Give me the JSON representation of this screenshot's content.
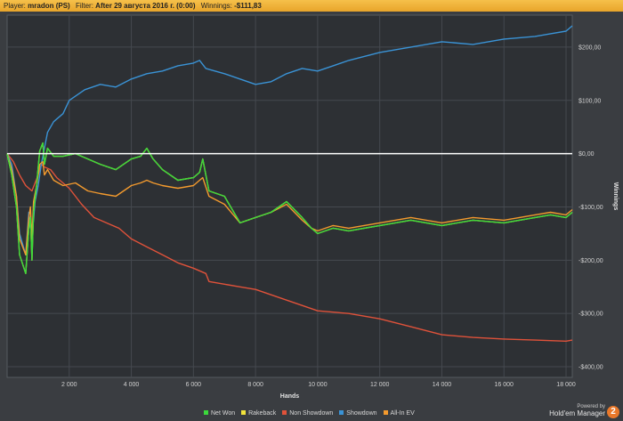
{
  "header": {
    "player_label": "Player:",
    "player_value": "mradon (PS)",
    "filter_label": "Filter:",
    "filter_value": "After 29 августа 2016 г. (0:00)",
    "winnings_label": "Winnings:",
    "winnings_value": "-$111,83"
  },
  "brand": {
    "powered_by": "Powered by",
    "name": "Hold'em Manager",
    "logo_text": "2"
  },
  "chart_data": {
    "type": "line",
    "xlabel": "Hands",
    "ylabel": "Winnings",
    "xlim": [
      0,
      18200
    ],
    "ylim": [
      -420,
      260
    ],
    "x_ticks": [
      2000,
      4000,
      6000,
      8000,
      10000,
      12000,
      14000,
      16000,
      18000
    ],
    "x_tick_labels": [
      "2 000",
      "4 000",
      "6 000",
      "8 000",
      "10 000",
      "12 000",
      "14 000",
      "16 000",
      "18 000"
    ],
    "y_ticks": [
      200,
      100,
      0,
      -100,
      -200,
      -300,
      -400
    ],
    "y_tick_labels": [
      "$200,00",
      "$100,00",
      "$0,00",
      "-$100,00",
      "-$200,00",
      "-$300,00",
      "-$400,00"
    ],
    "grid": true,
    "legend_position": "bottom",
    "series": [
      {
        "name": "Net Won",
        "color": "#3bd93b",
        "x": [
          0,
          150,
          300,
          400,
          600,
          700,
          750,
          800,
          850,
          950,
          1050,
          1150,
          1200,
          1300,
          1500,
          1800,
          2200,
          2600,
          3000,
          3500,
          4000,
          4300,
          4500,
          4700,
          5000,
          5500,
          6000,
          6200,
          6300,
          6500,
          7000,
          7500,
          8000,
          8500,
          9000,
          9500,
          9800,
          10000,
          10500,
          11000,
          12000,
          13000,
          14000,
          15000,
          16000,
          17000,
          17500,
          18000,
          18200
        ],
        "y": [
          0,
          -40,
          -100,
          -190,
          -225,
          -140,
          -120,
          -200,
          -110,
          -60,
          5,
          20,
          -20,
          10,
          -5,
          -5,
          0,
          -10,
          -20,
          -30,
          -10,
          -5,
          10,
          -10,
          -30,
          -50,
          -45,
          -35,
          -10,
          -70,
          -80,
          -130,
          -120,
          -110,
          -90,
          -120,
          -140,
          -150,
          -140,
          -145,
          -135,
          -125,
          -135,
          -125,
          -130,
          -120,
          -115,
          -120,
          -110
        ]
      },
      {
        "name": "Rakeback",
        "color": "#f2e43c",
        "x": [
          0,
          150,
          300,
          400,
          600,
          700,
          750,
          800,
          850,
          950,
          1050,
          1150,
          1200,
          1300,
          1500,
          1800,
          2200,
          2600,
          3000,
          3500,
          4000,
          4300,
          4500,
          4700,
          5000,
          5500,
          6000,
          6200,
          6300,
          6500,
          7000,
          7500,
          8000,
          8500,
          9000,
          9500,
          9800,
          10000,
          10500,
          11000,
          12000,
          13000,
          14000,
          15000,
          16000,
          17000,
          17500,
          18000,
          18200
        ],
        "y": [
          0,
          -40,
          -100,
          -190,
          -225,
          -140,
          -120,
          -200,
          -110,
          -60,
          5,
          20,
          -20,
          10,
          -5,
          -5,
          0,
          -10,
          -20,
          -30,
          -10,
          -5,
          10,
          -10,
          -30,
          -50,
          -45,
          -35,
          -10,
          -70,
          -80,
          -130,
          -120,
          -110,
          -90,
          -120,
          -140,
          -150,
          -140,
          -145,
          -135,
          -125,
          -135,
          -125,
          -130,
          -120,
          -115,
          -120,
          -110
        ]
      },
      {
        "name": "Non Showdown",
        "color": "#e0523a",
        "x": [
          0,
          200,
          400,
          600,
          800,
          1000,
          1100,
          1200,
          1400,
          1600,
          2000,
          2400,
          2800,
          3200,
          3600,
          4000,
          4500,
          5000,
          5500,
          6000,
          6400,
          6500,
          7000,
          7500,
          8000,
          8500,
          9000,
          9500,
          10000,
          11000,
          12000,
          13000,
          14000,
          15000,
          16000,
          17000,
          18000,
          18200
        ],
        "y": [
          0,
          -15,
          -40,
          -60,
          -70,
          -40,
          -20,
          -25,
          -30,
          -45,
          -65,
          -95,
          -120,
          -130,
          -140,
          -160,
          -175,
          -190,
          -205,
          -215,
          -225,
          -240,
          -245,
          -250,
          -255,
          -265,
          -275,
          -285,
          -295,
          -300,
          -310,
          -325,
          -340,
          -345,
          -348,
          -350,
          -352,
          -350
        ]
      },
      {
        "name": "Showdown",
        "color": "#3a93d6",
        "x": [
          0,
          150,
          300,
          400,
          600,
          700,
          800,
          900,
          1000,
          1100,
          1200,
          1300,
          1500,
          1800,
          2000,
          2500,
          3000,
          3500,
          4000,
          4500,
          5000,
          5500,
          6000,
          6200,
          6400,
          7000,
          7500,
          8000,
          8500,
          9000,
          9500,
          10000,
          10500,
          11000,
          12000,
          13000,
          14000,
          15000,
          16000,
          17000,
          17500,
          18000,
          18200
        ],
        "y": [
          0,
          -20,
          -80,
          -150,
          -190,
          -110,
          -160,
          -90,
          -60,
          -20,
          10,
          40,
          60,
          75,
          100,
          120,
          130,
          125,
          140,
          150,
          155,
          165,
          170,
          175,
          160,
          150,
          140,
          130,
          135,
          150,
          160,
          155,
          165,
          175,
          190,
          200,
          210,
          205,
          215,
          220,
          225,
          230,
          240
        ]
      },
      {
        "name": "All-In EV",
        "color": "#f39a2e",
        "x": [
          0,
          150,
          300,
          400,
          600,
          700,
          750,
          800,
          850,
          950,
          1050,
          1150,
          1200,
          1300,
          1500,
          1800,
          2200,
          2600,
          3000,
          3500,
          4000,
          4300,
          4500,
          4700,
          5000,
          5500,
          6000,
          6200,
          6300,
          6500,
          7000,
          7500,
          8000,
          8500,
          9000,
          9500,
          9800,
          10000,
          10500,
          11000,
          12000,
          13000,
          14000,
          15000,
          16000,
          17000,
          17500,
          18000,
          18200
        ],
        "y": [
          0,
          -30,
          -80,
          -160,
          -190,
          -120,
          -100,
          -160,
          -90,
          -60,
          -20,
          -15,
          -40,
          -30,
          -50,
          -60,
          -55,
          -70,
          -75,
          -80,
          -60,
          -55,
          -50,
          -55,
          -60,
          -65,
          -60,
          -50,
          -45,
          -80,
          -95,
          -130,
          -120,
          -110,
          -95,
          -125,
          -140,
          -145,
          -135,
          -140,
          -130,
          -120,
          -130,
          -120,
          -125,
          -115,
          -110,
          -115,
          -105
        ]
      }
    ],
    "baseline": {
      "value": 0,
      "color": "#ffffff"
    }
  }
}
